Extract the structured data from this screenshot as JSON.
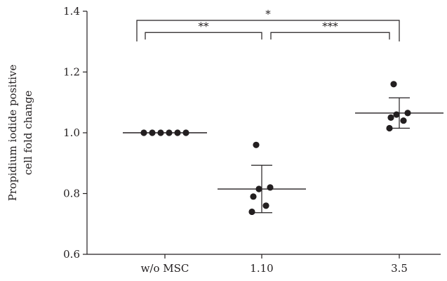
{
  "chart_data": {
    "type": "scatter",
    "title": "",
    "xlabel": "",
    "ylabel_lines": [
      "Propidium iodide positive",
      "cell fold change"
    ],
    "ylim": [
      0.6,
      1.4
    ],
    "yticks": [
      0.6,
      0.8,
      1.0,
      1.2,
      1.4
    ],
    "ytick_labels": [
      "0.6",
      "0.8",
      "1.0",
      "1.2",
      "1.4"
    ],
    "grid": false,
    "categories": [
      "w/o MSC",
      "1.10",
      "3.5"
    ],
    "groups": [
      {
        "category": "w/o MSC",
        "points": [
          1.0,
          1.0,
          1.0,
          1.0,
          1.0,
          1.0
        ],
        "mean": 1.0,
        "sd": 0.0
      },
      {
        "category": "1.10",
        "points": [
          0.96,
          0.82,
          0.815,
          0.79,
          0.76,
          0.74
        ],
        "mean": 0.815,
        "sd": 0.078
      },
      {
        "category": "3.5",
        "points": [
          1.16,
          1.065,
          1.06,
          1.05,
          1.04,
          1.015
        ],
        "mean": 1.065,
        "sd": 0.05
      }
    ],
    "significance": [
      {
        "from": 0,
        "to": 1,
        "label": "**",
        "level": 1.33
      },
      {
        "from": 1,
        "to": 2,
        "label": "***",
        "level": 1.33
      },
      {
        "from": 0,
        "to": 2,
        "label": "*",
        "level": 1.37
      }
    ]
  }
}
